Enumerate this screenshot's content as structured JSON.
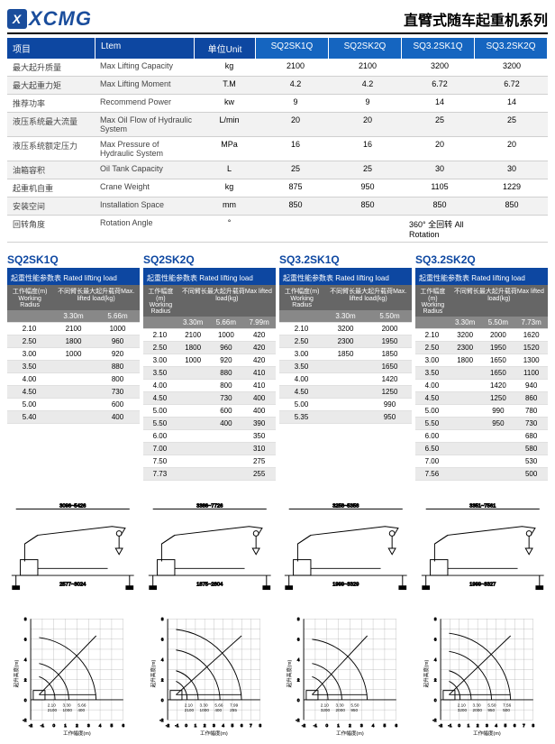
{
  "header": {
    "logo": "XCMG",
    "title": "直臂式随车起重机系列"
  },
  "specHead": {
    "c1": "项目",
    "c2": "Ltem",
    "c3": "单位Unit",
    "models": [
      "SQ2SK1Q",
      "SQ2SK2Q",
      "SQ3.2SK1Q",
      "SQ3.2SK2Q"
    ]
  },
  "specRows": [
    {
      "cn": "最大起升质量",
      "en": "Max Lifting Capacity",
      "unit": "kg",
      "v": [
        "2100",
        "2100",
        "3200",
        "3200"
      ]
    },
    {
      "cn": "最大起重力矩",
      "en": "Max Lifting Moment",
      "unit": "T.M",
      "v": [
        "4.2",
        "4.2",
        "6.72",
        "6.72"
      ]
    },
    {
      "cn": "推荐功率",
      "en": "Recommend Power",
      "unit": "kw",
      "v": [
        "9",
        "9",
        "14",
        "14"
      ]
    },
    {
      "cn": "液压系统最大流量",
      "en": "Max Oil Flow of Hydraulic System",
      "unit": "L/min",
      "v": [
        "20",
        "20",
        "25",
        "25"
      ]
    },
    {
      "cn": "液压系统额定压力",
      "en": "Max Pressure of Hydraulic System",
      "unit": "MPa",
      "v": [
        "16",
        "16",
        "20",
        "20"
      ]
    },
    {
      "cn": "油箱容积",
      "en": "Oil Tank Capacity",
      "unit": "L",
      "v": [
        "25",
        "25",
        "30",
        "30"
      ]
    },
    {
      "cn": "起重机自重",
      "en": "Crane Weight",
      "unit": "kg",
      "v": [
        "875",
        "950",
        "1105",
        "1229"
      ]
    },
    {
      "cn": "安装空间",
      "en": "Installation Space",
      "unit": "mm",
      "v": [
        "850",
        "850",
        "850",
        "850"
      ]
    },
    {
      "cn": "回转角度",
      "en": "Rotation Angle",
      "unit": "°",
      "v": [
        "",
        "",
        "360° 全回转 All Rotation",
        ""
      ]
    }
  ],
  "tables": [
    {
      "title": "SQ2SK1Q",
      "sub": "起重性能参数表 Rated lifting load",
      "head": [
        "工作幅度(m)\nWorking Radius",
        "不同臂长最大起升载荷Max. lifted load(kg)"
      ],
      "cols": [
        "",
        "3.30m",
        "5.66m"
      ],
      "rows": [
        [
          "2.10",
          "2100",
          "1000"
        ],
        [
          "2.50",
          "1800",
          "960"
        ],
        [
          "3.00",
          "1000",
          "920"
        ],
        [
          "3.50",
          "",
          "880"
        ],
        [
          "4.00",
          "",
          "800"
        ],
        [
          "4.50",
          "",
          "730"
        ],
        [
          "5.00",
          "",
          "600"
        ],
        [
          "5.40",
          "",
          "400"
        ]
      ]
    },
    {
      "title": "SQ2SK2Q",
      "sub": "起重性能参数表 Rated lifting load",
      "head": [
        "工作幅度(m)\nWorking Radius",
        "不同臂长最大起升载荷Max lifted load(kg)"
      ],
      "cols": [
        "",
        "3.30m",
        "5.66m",
        "7.99m"
      ],
      "rows": [
        [
          "2.10",
          "2100",
          "1000",
          "420"
        ],
        [
          "2.50",
          "1800",
          "960",
          "420"
        ],
        [
          "3.00",
          "1000",
          "920",
          "420"
        ],
        [
          "3.50",
          "",
          "880",
          "410"
        ],
        [
          "4.00",
          "",
          "800",
          "410"
        ],
        [
          "4.50",
          "",
          "730",
          "400"
        ],
        [
          "5.00",
          "",
          "600",
          "400"
        ],
        [
          "5.50",
          "",
          "400",
          "390"
        ],
        [
          "6.00",
          "",
          "",
          "350"
        ],
        [
          "7.00",
          "",
          "",
          "310"
        ],
        [
          "7.50",
          "",
          "",
          "275"
        ],
        [
          "7.73",
          "",
          "",
          "255"
        ]
      ]
    },
    {
      "title": "SQ3.2SK1Q",
      "sub": "起重性能参数表 Rated lifting load",
      "head": [
        "工作幅度(m)\nWorking Radius",
        "不同臂长最大起升载荷Max. lifted load(kg)"
      ],
      "cols": [
        "",
        "3.30m",
        "5.50m"
      ],
      "rows": [
        [
          "2.10",
          "3200",
          "2000"
        ],
        [
          "2.50",
          "2300",
          "1950"
        ],
        [
          "3.00",
          "1850",
          "1850"
        ],
        [
          "3.50",
          "",
          "1650"
        ],
        [
          "4.00",
          "",
          "1420"
        ],
        [
          "4.50",
          "",
          "1250"
        ],
        [
          "5.00",
          "",
          "990"
        ],
        [
          "5.35",
          "",
          "950"
        ]
      ]
    },
    {
      "title": "SQ3.2SK2Q",
      "sub": "起重性能参数表 Rated lifting load",
      "head": [
        "工作幅度(m)\nWorking Radius",
        "不同臂长最大起升载荷Max lifted load(kg)"
      ],
      "cols": [
        "",
        "3.30m",
        "5.50m",
        "7.73m"
      ],
      "rows": [
        [
          "2.10",
          "3200",
          "2000",
          "1620"
        ],
        [
          "2.50",
          "2300",
          "1950",
          "1520"
        ],
        [
          "3.00",
          "1800",
          "1650",
          "1300"
        ],
        [
          "3.50",
          "",
          "1650",
          "1100"
        ],
        [
          "4.00",
          "",
          "1420",
          "940"
        ],
        [
          "4.50",
          "",
          "1250",
          "860"
        ],
        [
          "5.00",
          "",
          "990",
          "780"
        ],
        [
          "5.50",
          "",
          "950",
          "730"
        ],
        [
          "6.00",
          "",
          "",
          "680"
        ],
        [
          "6.50",
          "",
          "",
          "580"
        ],
        [
          "7.00",
          "",
          "",
          "530"
        ],
        [
          "7.56",
          "",
          "",
          "500"
        ]
      ]
    }
  ],
  "drawingLabels": [
    "3096~5426",
    "3386~7726",
    "3258~5358",
    "3351~7561"
  ],
  "drawingDims": [
    "2577~3024",
    "1875~2804",
    "1999~3329",
    "1999~3327"
  ],
  "chartXLabel": "工作幅度(m)",
  "chartYLabel": "起升高度(m)",
  "chartXMax": [
    6,
    8,
    6,
    8
  ],
  "chartYRange": [
    -2,
    8
  ],
  "chartLoads": [
    [
      [
        "2.10",
        "3.30",
        "5.66"
      ],
      [
        "2100",
        "1000",
        "400"
      ]
    ],
    [
      [
        "2.10",
        "3.30",
        "5.66",
        "7.99"
      ],
      [
        "2100",
        "1000",
        "400",
        "255"
      ]
    ],
    [
      [
        "2.10",
        "3.30",
        "5.50"
      ],
      [
        "3200",
        "2000",
        "950"
      ]
    ],
    [
      [
        "2.10",
        "3.30",
        "5.50",
        "7.56"
      ],
      [
        "3200",
        "2000",
        "950",
        "500"
      ]
    ]
  ]
}
